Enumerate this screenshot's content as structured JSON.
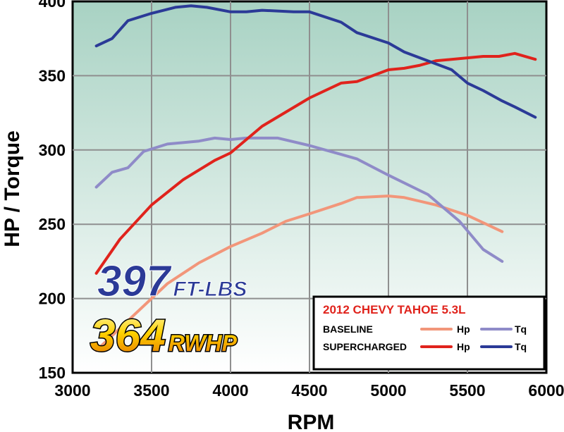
{
  "chart_data": {
    "type": "line",
    "xlabel": "RPM",
    "ylabel": "HP / Torque",
    "xlim": [
      3000,
      6000
    ],
    "ylim": [
      150,
      400
    ],
    "x_ticks": [
      "3000",
      "3500",
      "4000",
      "4500",
      "5000",
      "5500",
      "6000"
    ],
    "y_ticks": [
      "150",
      "200",
      "250",
      "300",
      "350",
      "400"
    ],
    "grid": true,
    "legend_position": "bottom-right",
    "legend": {
      "title": "2012 CHEVY TAHOE 5.3L",
      "rows": [
        {
          "label": "BASELINE",
          "hp": "Hp",
          "tq": "Tq"
        },
        {
          "label": "SUPERCHARGED",
          "hp": "Hp",
          "tq": "Tq"
        }
      ]
    },
    "annotations": {
      "torque_value": "397",
      "torque_unit": "FT-LBS",
      "hp_value": "364",
      "hp_unit": "RWHP"
    },
    "colors": {
      "baseline_hp": "#f2967a",
      "baseline_tq": "#8f8bc8",
      "supercharged_hp": "#e0231c",
      "supercharged_tq": "#2b3a97",
      "background_top": "#a8d2c3",
      "background_bottom": "#ffffff"
    },
    "series": [
      {
        "key": "baseline_hp",
        "x": [
          3150,
          3350,
          3600,
          3800,
          4000,
          4200,
          4350,
          4500,
          4700,
          4800,
          5000,
          5100,
          5300,
          5500,
          5720
        ],
        "values": [
          165,
          185,
          210,
          224,
          235,
          244,
          252,
          257,
          264,
          268,
          269,
          268,
          263,
          256,
          245
        ]
      },
      {
        "key": "baseline_tq",
        "x": [
          3150,
          3250,
          3350,
          3450,
          3600,
          3800,
          3900,
          4000,
          4100,
          4300,
          4500,
          4600,
          4700,
          4800,
          5000,
          5250,
          5450,
          5600,
          5720
        ],
        "values": [
          275,
          285,
          288,
          299,
          304,
          306,
          308,
          307,
          308,
          308,
          303,
          300,
          297,
          294,
          283,
          270,
          252,
          233,
          225
        ]
      },
      {
        "key": "supercharged_hp",
        "x": [
          3150,
          3300,
          3500,
          3700,
          3900,
          4000,
          4200,
          4500,
          4700,
          4800,
          5000,
          5100,
          5200,
          5300,
          5500,
          5600,
          5700,
          5800,
          5930
        ],
        "values": [
          217,
          240,
          263,
          280,
          293,
          298,
          316,
          335,
          345,
          346,
          354,
          355,
          357,
          360,
          362,
          363,
          363,
          365,
          361
        ]
      },
      {
        "key": "supercharged_tq",
        "x": [
          3150,
          3250,
          3350,
          3500,
          3650,
          3750,
          3850,
          4000,
          4100,
          4200,
          4400,
          4500,
          4700,
          4800,
          5000,
          5100,
          5400,
          5500,
          5600,
          5720,
          5800,
          5930
        ],
        "values": [
          370,
          375,
          387,
          392,
          396,
          397,
          396,
          393,
          393,
          394,
          393,
          393,
          386,
          379,
          372,
          366,
          354,
          345,
          340,
          333,
          329,
          322
        ]
      }
    ]
  }
}
